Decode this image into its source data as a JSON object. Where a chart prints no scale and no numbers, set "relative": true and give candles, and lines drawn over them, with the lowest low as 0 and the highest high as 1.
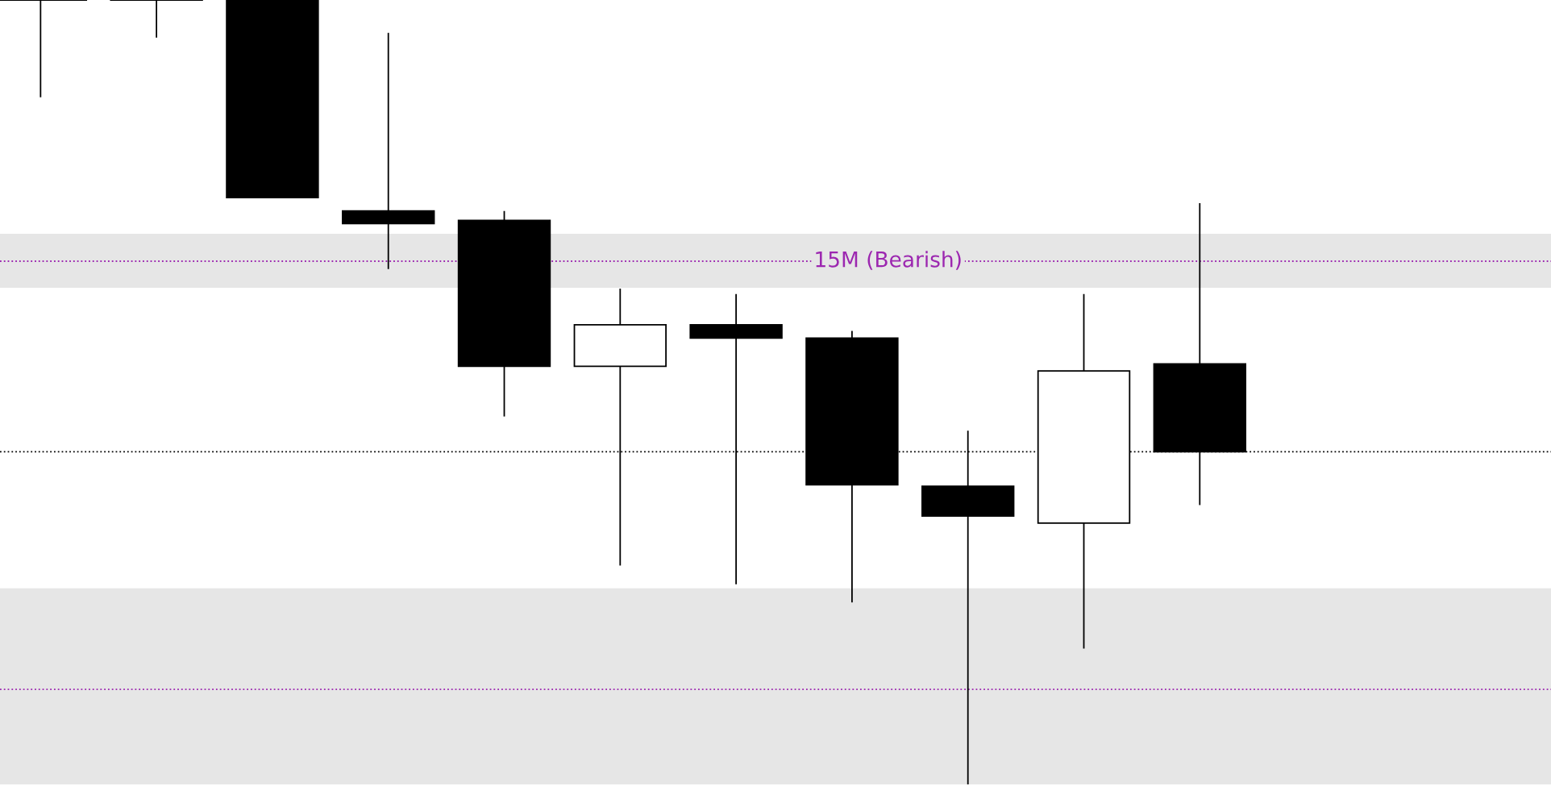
{
  "chart_data": {
    "type": "candlestick",
    "relative": true,
    "categories": [
      null,
      null,
      null,
      null,
      null,
      null,
      null,
      null,
      null,
      null,
      null,
      null,
      null,
      null
    ],
    "ohlc": [
      [
        1,
        1,
        0.876,
        1
      ],
      [
        1,
        1,
        0.952,
        1
      ],
      [
        1,
        1,
        0.748,
        0.748
      ],
      [
        0.731,
        0.958,
        0.657,
        0.715
      ],
      [
        0.719,
        0.731,
        0.469,
        0.533
      ],
      [
        0.533,
        0.632,
        0.279,
        0.586
      ],
      [
        0.586,
        0.625,
        0.255,
        0.569
      ],
      [
        0.569,
        0.578,
        0.232,
        0.382
      ],
      [
        0.38,
        0.451,
        0,
        0.342
      ],
      [
        0.333,
        0.625,
        0.173,
        0.527
      ],
      [
        0.536,
        0.741,
        0.356,
        0.424
      ],
      null,
      null,
      null
    ],
    "bands": [
      {
        "axis": "y",
        "from": 0.633,
        "to": 0.702,
        "color": "#e6e6e6"
      },
      {
        "axis": "y",
        "from": 0.0,
        "to": 0.25,
        "color": "#e6e6e6"
      }
    ],
    "ref_lines": [
      {
        "axis": "y",
        "value": 0.667,
        "label": "15M (Bearish)",
        "color": "#9c27b0",
        "line_style": "dotted"
      },
      {
        "axis": "y",
        "value": 0.121,
        "color": "#9c27b0",
        "line_style": "dotted"
      },
      {
        "axis": "y",
        "value": 0.424,
        "color": "#000000",
        "line_style": "dotted"
      }
    ],
    "grid": false
  }
}
